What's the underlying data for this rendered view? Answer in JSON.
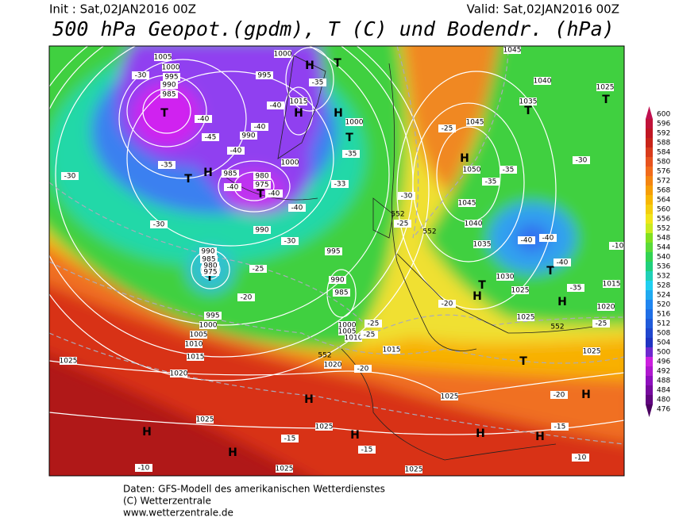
{
  "header": {
    "init": "Init : Sat,02JAN2016 00Z",
    "valid": "Valid: Sat,02JAN2016 00Z",
    "title": "500 hPa Geopot.(gpdm), T (C) und Bodendr. (hPa)"
  },
  "legend": {
    "values": [
      600,
      596,
      592,
      588,
      584,
      580,
      576,
      572,
      568,
      564,
      560,
      556,
      552,
      548,
      544,
      540,
      536,
      532,
      528,
      524,
      520,
      516,
      512,
      508,
      504,
      500,
      496,
      492,
      488,
      484,
      480,
      476
    ]
  },
  "map": {
    "pressure_centers": [
      "T",
      "T",
      "H",
      "T",
      "T",
      "H",
      "H",
      "T",
      "H",
      "T",
      "H",
      "T",
      "T",
      "T",
      "H",
      "H",
      "T",
      "T",
      "H",
      "H",
      "H",
      "H",
      "H",
      "H",
      "H"
    ],
    "isobar_labels": [
      "1005",
      "1000",
      "995",
      "990",
      "985",
      "995",
      "1000",
      "990",
      "985",
      "980",
      "975",
      "1000",
      "1015",
      "990",
      "990",
      "985",
      "980",
      "975",
      "995",
      "990",
      "985",
      "995",
      "1000",
      "1005",
      "1010",
      "1015",
      "1020",
      "1025",
      "1025",
      "1025",
      "1025",
      "1025",
      "1025",
      "1000",
      "1005",
      "1010",
      "1015",
      "1020",
      "1000",
      "1045",
      "1050",
      "1045",
      "1040",
      "1035",
      "1030",
      "1025",
      "1025",
      "1040",
      "1035",
      "1025",
      "1015",
      "1020",
      "1025",
      "1045"
    ],
    "temperature_labels": [
      "-30",
      "-40",
      "-40",
      "-40",
      "-35",
      "-30",
      "-30",
      "-35",
      "-40",
      "-45",
      "-40",
      "-40",
      "-40",
      "-35",
      "-33",
      "-30",
      "-25",
      "-20",
      "-25",
      "-25",
      "-30",
      "-25",
      "-25",
      "-20",
      "-20",
      "-35",
      "-35",
      "-30",
      "-40",
      "-40",
      "-40",
      "-35",
      "-25",
      "-20",
      "-15",
      "-10",
      "-15",
      "-15",
      "-10",
      "-10"
    ],
    "height_labels": [
      "552",
      "552",
      "552",
      "552"
    ]
  },
  "footer": {
    "line1": "Daten: GFS-Modell des amerikanischen Wetterdienstes",
    "line2": "(C) Wetterzentrale",
    "line3": "www.wetterzentrale.de"
  }
}
